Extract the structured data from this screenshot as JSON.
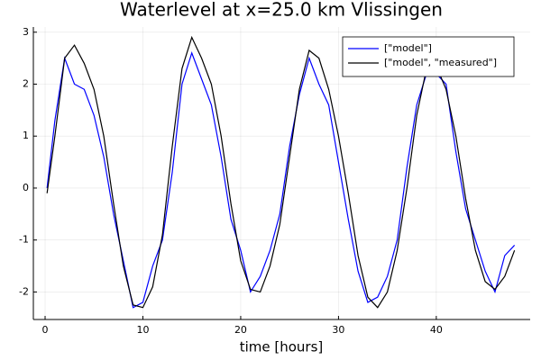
{
  "chart_data": {
    "type": "line",
    "title": "Waterlevel at x=25.0 km Vlissingen",
    "x_label": "time [hours]",
    "x": [
      0.2,
      1,
      2,
      3,
      4,
      5,
      6,
      7,
      8,
      9,
      10,
      11,
      12,
      13,
      14,
      15,
      16,
      17,
      18,
      19,
      20,
      21,
      22,
      23,
      24,
      25,
      26,
      27,
      28,
      29,
      30,
      31,
      32,
      33,
      34,
      35,
      36,
      37,
      38,
      39,
      40,
      41,
      42,
      43,
      44,
      45,
      46,
      47,
      48
    ],
    "series": [
      {
        "name": "[\"model\"]",
        "color": "#0000ff",
        "values": [
          0.0,
          1.3,
          2.5,
          2.0,
          1.9,
          1.4,
          0.6,
          -0.5,
          -1.4,
          -2.3,
          -2.2,
          -1.5,
          -1.0,
          0.3,
          2.0,
          2.6,
          2.1,
          1.6,
          0.6,
          -0.6,
          -1.2,
          -2.0,
          -1.7,
          -1.2,
          -0.5,
          0.8,
          1.8,
          2.5,
          2.0,
          1.6,
          0.5,
          -0.6,
          -1.6,
          -2.2,
          -2.1,
          -1.7,
          -1.0,
          0.4,
          1.6,
          2.2,
          2.2,
          2.0,
          0.7,
          -0.4,
          -1.0,
          -1.6,
          -2.0,
          -1.3,
          -1.1
        ]
      },
      {
        "name": "[\"model\", \"measured\"]",
        "color": "#000000",
        "values": [
          -0.1,
          1.0,
          2.5,
          2.75,
          2.4,
          1.9,
          1.0,
          -0.3,
          -1.5,
          -2.25,
          -2.3,
          -1.9,
          -0.9,
          0.8,
          2.3,
          2.9,
          2.5,
          2.0,
          1.0,
          -0.3,
          -1.4,
          -1.95,
          -2.0,
          -1.5,
          -0.7,
          0.6,
          1.9,
          2.65,
          2.5,
          1.9,
          1.0,
          -0.1,
          -1.3,
          -2.1,
          -2.3,
          -2.0,
          -1.2,
          0.0,
          1.4,
          2.3,
          2.35,
          1.9,
          1.0,
          -0.2,
          -1.2,
          -1.8,
          -1.95,
          -1.7,
          -1.2
        ]
      }
    ],
    "xlim": [
      -1.2,
      49.6
    ],
    "xticks": [
      0,
      10,
      20,
      30,
      40
    ],
    "ylim": [
      -2.53,
      3.1
    ],
    "yticks": [
      -2,
      -1,
      0,
      1,
      2,
      3
    ],
    "grid": true,
    "legend": "top-right"
  }
}
